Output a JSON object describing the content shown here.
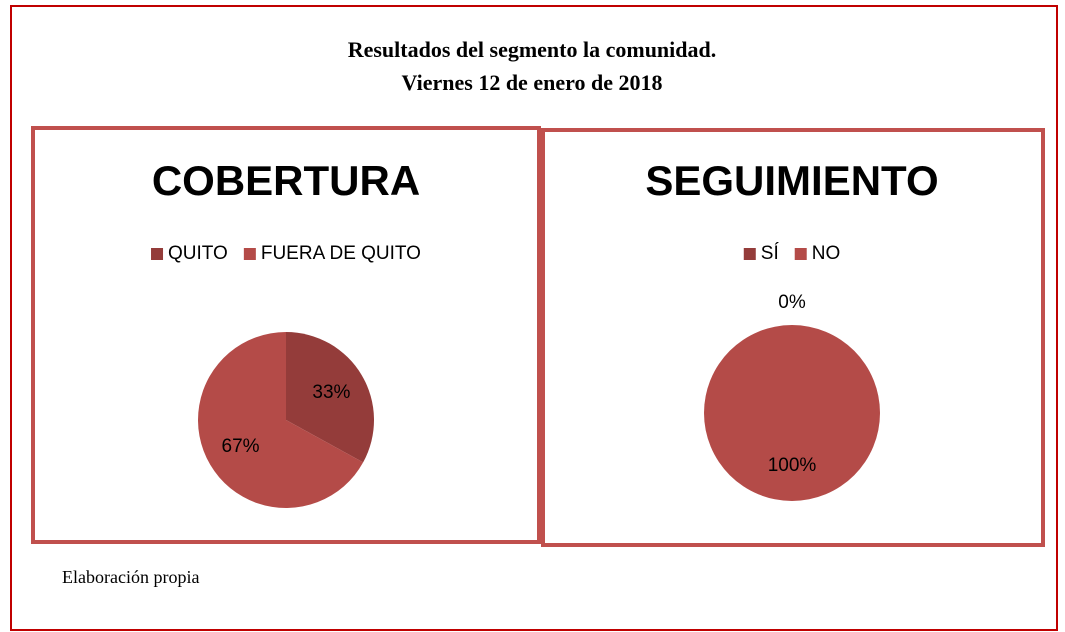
{
  "title": [
    "Resultados del segmento la comunidad.",
    "Viernes 12 de enero de 2018"
  ],
  "chart_data": [
    {
      "type": "pie",
      "title": "COBERTURA",
      "categories": [
        "QUITO",
        "FUERA DE QUITO"
      ],
      "values": [
        33,
        67
      ],
      "value_labels": [
        "33%",
        "67%"
      ],
      "colors": [
        "#943c3a",
        "#b44b48"
      ]
    },
    {
      "type": "pie",
      "title": "SEGUIMIENTO",
      "categories": [
        "SÍ",
        "NO"
      ],
      "values": [
        0,
        100
      ],
      "value_labels": [
        "0%",
        "100%"
      ],
      "colors": [
        "#943c3a",
        "#b44b48"
      ]
    }
  ],
  "note": "Elaboración propia"
}
